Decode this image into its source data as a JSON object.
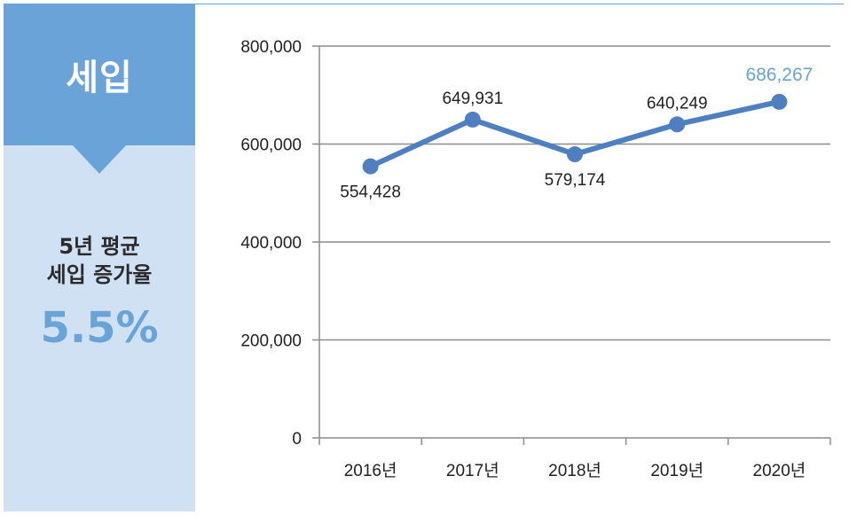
{
  "side_panel": {
    "title": "세입",
    "caption_line1": "5년 평균",
    "caption_line2": "세입 증가율",
    "rate": "5.5%"
  },
  "colors": {
    "accent": "#6aa3d8",
    "line": "#4e7fc1",
    "panel_bg": "#cfe1f3",
    "highlight_label": "#6aa3d8"
  },
  "chart_data": {
    "type": "line",
    "title": "",
    "xlabel": "",
    "ylabel": "",
    "categories": [
      "2016년",
      "2017년",
      "2018년",
      "2019년",
      "2020년"
    ],
    "series": [
      {
        "values": [
          554428,
          649931,
          579174,
          640249,
          686267
        ],
        "labels": [
          "554,428",
          "649,931",
          "579,174",
          "640,249",
          "686,267"
        ]
      }
    ],
    "ylim": [
      0,
      800000
    ],
    "yticks": [
      0,
      200000,
      400000,
      600000,
      800000
    ],
    "ytick_labels": [
      "0",
      "200,000",
      "400,000",
      "600,000",
      "800,000"
    ],
    "grid": true,
    "highlighted_index": 4
  }
}
